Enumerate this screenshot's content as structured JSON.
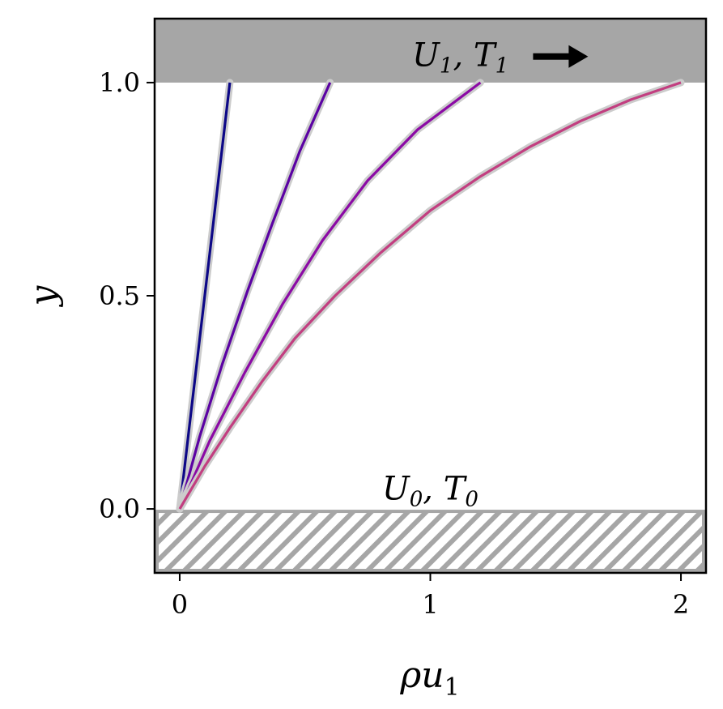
{
  "chart_data": {
    "type": "line",
    "xlabel_main": "ρu",
    "xlabel_sub": "1",
    "ylabel": "y",
    "xlim": [
      -0.1,
      2.1
    ],
    "ylim": [
      -0.15,
      1.15
    ],
    "xticks": [
      0,
      1,
      2
    ],
    "xtick_labels": [
      "0",
      "1",
      "2"
    ],
    "yticks": [
      0.0,
      0.5,
      1.0
    ],
    "ytick_labels": [
      "0.0",
      "0.5",
      "1.0"
    ],
    "grid": false,
    "top_wall": {
      "y_range": [
        1.0,
        1.15
      ],
      "fill": "#a6a6a6",
      "label": {
        "U": "U",
        "U_sub": "1",
        "sep": ", ",
        "T": "T",
        "T_sub": "1"
      },
      "label_x": 1.2,
      "label_y": 1.065,
      "arrow_icon": "right-arrow-icon"
    },
    "bottom_wall": {
      "y_range": [
        -0.15,
        0.0
      ],
      "hatch_color": "#a6a6a6",
      "label": {
        "U": "U",
        "U_sub": "0",
        "sep": ", ",
        "T": "T",
        "T_sub": "0"
      },
      "label_x": 1.0,
      "label_y": 0.03
    },
    "series": [
      {
        "color": "#0d0887",
        "x": [
          0,
          0.04,
          0.08,
          0.12,
          0.16,
          0.2
        ],
        "y": [
          0,
          0.2,
          0.4,
          0.6,
          0.8,
          1.0
        ]
      },
      {
        "color": "#5b02a3",
        "x": [
          0,
          0.08,
          0.17,
          0.27,
          0.37,
          0.48,
          0.6
        ],
        "y": [
          0,
          0.17,
          0.34,
          0.51,
          0.67,
          0.84,
          1.0
        ]
      },
      {
        "color": "#8b0aa5",
        "x": [
          0,
          0.12,
          0.26,
          0.41,
          0.57,
          0.75,
          0.95,
          1.2
        ],
        "y": [
          0,
          0.16,
          0.32,
          0.48,
          0.63,
          0.77,
          0.89,
          1.0
        ]
      },
      {
        "color": "#c23e80",
        "x": [
          0,
          0.1,
          0.2,
          0.33,
          0.46,
          0.62,
          0.8,
          1.0,
          1.2,
          1.4,
          1.6,
          1.8,
          2.0
        ],
        "y": [
          0,
          0.1,
          0.19,
          0.3,
          0.4,
          0.5,
          0.6,
          0.7,
          0.78,
          0.85,
          0.91,
          0.96,
          1.0
        ]
      }
    ],
    "halo_color": "#cccccc"
  }
}
